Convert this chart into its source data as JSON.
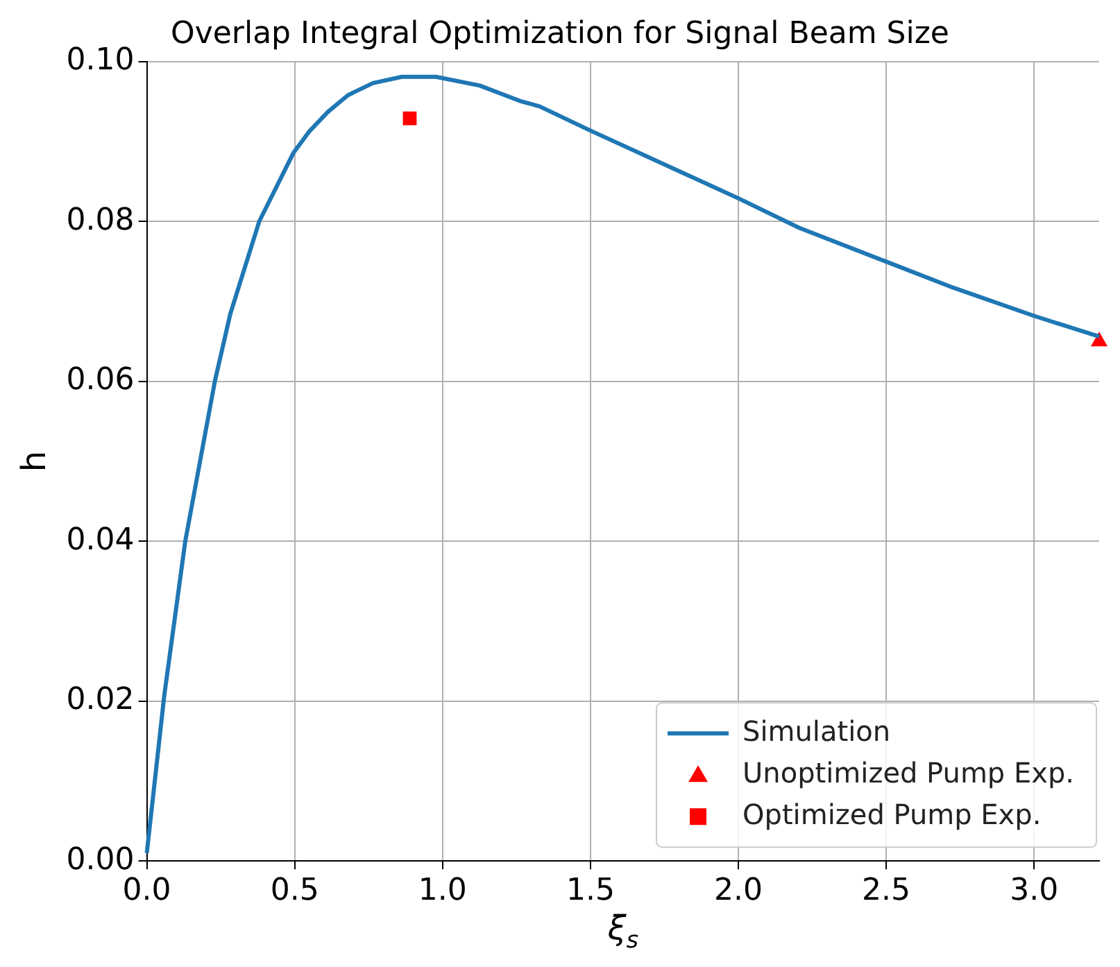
{
  "chart_data": {
    "type": "line",
    "title": "Overlap Integral Optimization for Signal Beam Size",
    "xlabel": "ξ$_{s}$",
    "ylabel": "h",
    "xlim": [
      0,
      3.22
    ],
    "ylim": [
      0,
      0.1
    ],
    "xticks": [
      {
        "value": 0,
        "label": "0.0"
      },
      {
        "value": 0.5,
        "label": "0.5"
      },
      {
        "value": 1,
        "label": "1.0"
      },
      {
        "value": 1.5,
        "label": "1.5"
      },
      {
        "value": 2,
        "label": "2.0"
      },
      {
        "value": 2.5,
        "label": "2.5"
      },
      {
        "value": 3,
        "label": "3.0"
      }
    ],
    "yticks": [
      {
        "value": 0,
        "label": "0.00"
      },
      {
        "value": 0.02,
        "label": "0.02"
      },
      {
        "value": 0.04,
        "label": "0.04"
      },
      {
        "value": 0.06,
        "label": "0.06"
      },
      {
        "value": 0.08,
        "label": "0.08"
      },
      {
        "value": 0.1,
        "label": "0.10"
      }
    ],
    "grid": true,
    "legend": "bottom right",
    "series": [
      {
        "name": "Simulation",
        "color": "#1f77b4",
        "marker": "none",
        "line_style": "solid",
        "x": [
          0,
          0.059,
          0.13,
          0.23,
          0.282,
          0.38,
          0.496,
          0.55,
          0.612,
          0.68,
          0.764,
          0.862,
          0.978,
          1.126,
          1.26,
          1.328,
          1.498,
          2.0,
          2.206,
          2.498,
          2.728,
          2.999,
          3.22
        ],
        "values": [
          0.001,
          0.0207,
          0.04,
          0.06,
          0.0684,
          0.08,
          0.0886,
          0.0913,
          0.0937,
          0.0958,
          0.0973,
          0.0981,
          0.0981,
          0.097,
          0.0951,
          0.0944,
          0.0914,
          0.0829,
          0.0792,
          0.075,
          0.0717,
          0.0682,
          0.0656
        ]
      },
      {
        "name": "Unoptimized Pump Exp.",
        "type": "scatter",
        "color": "#ff0000",
        "marker": "triangle",
        "x": [
          3.22
        ],
        "values": [
          0.065
        ]
      },
      {
        "name": "Optimized Pump Exp.",
        "type": "scatter",
        "color": "#ff0000",
        "marker": "square",
        "x": [
          0.889
        ],
        "values": [
          0.0929
        ]
      }
    ]
  }
}
